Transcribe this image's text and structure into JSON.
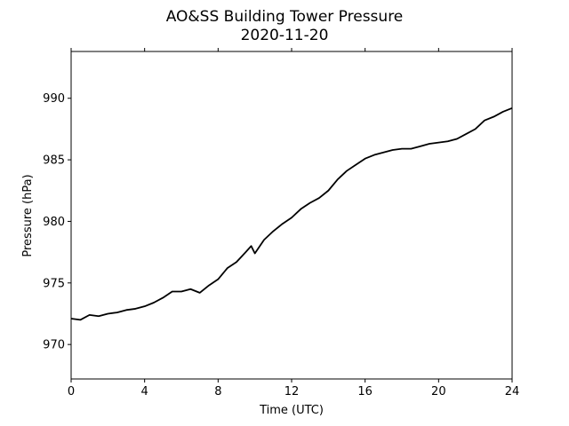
{
  "chart_data": {
    "type": "line",
    "title": "AO&SS Building Tower Pressure",
    "subtitle": "2020-11-20",
    "xlabel": "Time (UTC)",
    "ylabel": "Pressure (hPa)",
    "xlim": [
      0,
      24
    ],
    "ylim": [
      967.2,
      993.8
    ],
    "xticks": [
      0,
      4,
      8,
      12,
      16,
      20,
      24
    ],
    "yticks": [
      970,
      975,
      980,
      985,
      990
    ],
    "grid": false,
    "line_color": "#000000",
    "series": [
      {
        "x": [
          0,
          0.5,
          1,
          1.5,
          2,
          2.5,
          3,
          3.5,
          4,
          4.5,
          5,
          5.5,
          6,
          6.5,
          7,
          7.5,
          8,
          8.5,
          9,
          9.5,
          9.8,
          10,
          10.5,
          11,
          11.5,
          12,
          12.5,
          13,
          13.5,
          14,
          14.5,
          15,
          15.5,
          16,
          16.5,
          17,
          17.5,
          18,
          18.5,
          19,
          19.5,
          20,
          20.5,
          21,
          21.5,
          22,
          22.5,
          23,
          23.5,
          24
        ],
        "y": [
          972.1,
          972.0,
          972.4,
          972.3,
          972.5,
          972.6,
          972.8,
          972.9,
          973.1,
          973.4,
          973.8,
          974.3,
          974.3,
          974.5,
          974.2,
          974.8,
          975.3,
          976.2,
          976.7,
          977.5,
          978.0,
          977.4,
          978.5,
          979.2,
          979.8,
          980.3,
          981.0,
          981.5,
          981.9,
          982.5,
          983.4,
          984.1,
          984.6,
          985.1,
          985.4,
          985.6,
          985.8,
          985.9,
          985.9,
          986.1,
          986.3,
          986.4,
          986.5,
          986.7,
          987.1,
          987.5,
          988.2,
          988.5,
          988.9,
          989.2
        ]
      }
    ]
  }
}
